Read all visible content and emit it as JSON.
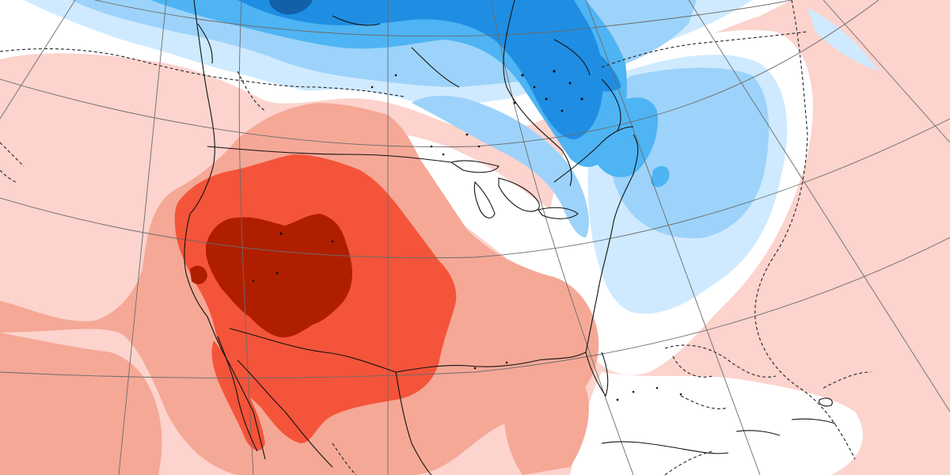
{
  "map": {
    "projection": "polar-stereographic",
    "region": "North America",
    "palette": {
      "dark_red": "#b01e00",
      "red": "#f4543a",
      "salmon": "#f5a896",
      "light_pink": "#fcd3cd",
      "white": "#ffffff",
      "pale_blue": "#cfeaff",
      "light_blue": "#9dd3fa",
      "blue": "#4eb4f3",
      "deep_blue": "#1f8ee2",
      "navy": "#1160a8",
      "graticule": "#666666",
      "coastline": "#111111"
    },
    "features": [
      {
        "name": "dark-red-anomaly-core",
        "category": "dark_red"
      },
      {
        "name": "red-anomaly-region",
        "category": "red"
      },
      {
        "name": "salmon-anomaly-region",
        "category": "salmon"
      },
      {
        "name": "blue-anomaly-region",
        "category": "blue"
      },
      {
        "name": "deep-blue-anomaly-region",
        "category": "deep_blue"
      }
    ]
  }
}
